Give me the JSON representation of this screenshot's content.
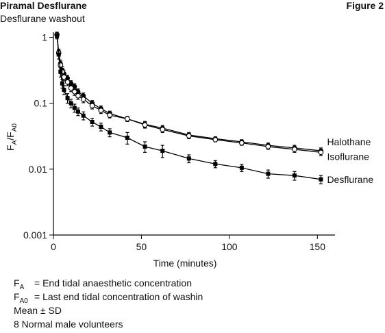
{
  "header": {
    "title": "Piramal Desflurane",
    "subtitle": "Desflurane washout",
    "figure": "Figure 2"
  },
  "chart_data": {
    "type": "line",
    "yscale": "log",
    "grid": false,
    "ylabel": [
      "F",
      "A",
      "/F",
      "A0"
    ],
    "xlabel": "Time (minutes)",
    "xlim": [
      0,
      160
    ],
    "xticks": [
      0,
      50,
      100,
      150
    ],
    "ylim": [
      0.001,
      1.2
    ],
    "yticks": [
      1,
      0.1,
      0.01,
      0.001
    ],
    "x": [
      2,
      3,
      4,
      5,
      6,
      8,
      10,
      12,
      14,
      17,
      22,
      27,
      32,
      42,
      52,
      62,
      77,
      92,
      107,
      122,
      137,
      152
    ],
    "series": [
      {
        "name": "Halothane",
        "color": "#000000",
        "marker": "circle",
        "values": [
          1.1,
          0.6,
          0.4,
          0.32,
          0.28,
          0.24,
          0.2,
          0.18,
          0.15,
          0.13,
          0.1,
          0.083,
          0.07,
          0.058,
          0.048,
          0.042,
          0.033,
          0.029,
          0.026,
          0.023,
          0.021,
          0.019
        ],
        "errors": [
          0.1,
          0.06,
          0.05,
          0.04,
          0.03,
          0.025,
          0.02,
          0.018,
          0.015,
          0.013,
          0.01,
          0.008,
          0.006,
          0.005,
          0.005,
          0.004,
          0.003,
          0.002,
          0.002,
          0.002,
          0.002,
          0.002
        ]
      },
      {
        "name": "Isoflurane",
        "color": "#000000",
        "marker": "open-circle",
        "values": [
          1.1,
          0.58,
          0.38,
          0.3,
          0.25,
          0.21,
          0.17,
          0.15,
          0.13,
          0.115,
          0.092,
          0.078,
          0.066,
          0.058,
          0.047,
          0.04,
          0.032,
          0.028,
          0.025,
          0.022,
          0.02,
          0.018
        ],
        "errors": [
          0.1,
          0.06,
          0.05,
          0.04,
          0.03,
          0.025,
          0.02,
          0.018,
          0.015,
          0.013,
          0.01,
          0.008,
          0.006,
          0.005,
          0.005,
          0.004,
          0.003,
          0.002,
          0.002,
          0.002,
          0.002,
          0.002
        ]
      },
      {
        "name": "Desflurane",
        "color": "#000000",
        "marker": "square",
        "values": [
          1.05,
          0.55,
          0.3,
          0.2,
          0.16,
          0.12,
          0.1,
          0.085,
          0.075,
          0.065,
          0.052,
          0.044,
          0.036,
          0.03,
          0.022,
          0.019,
          0.0145,
          0.012,
          0.0105,
          0.0085,
          0.008,
          0.007
        ],
        "errors": [
          0.1,
          0.08,
          0.05,
          0.03,
          0.025,
          0.02,
          0.015,
          0.012,
          0.01,
          0.009,
          0.007,
          0.006,
          0.005,
          0.006,
          0.004,
          0.004,
          0.002,
          0.0015,
          0.0013,
          0.0012,
          0.0012,
          0.001
        ]
      }
    ],
    "notes": [
      {
        "symbol": "F",
        "sub": "A",
        "text": "= End tidal anaesthetic concentration"
      },
      {
        "symbol": "F",
        "sub": "A0",
        "text": "= Last end tidal concentration of washin"
      },
      {
        "text": "Mean ± SD"
      },
      {
        "text": "8 Normal male volunteers"
      }
    ]
  }
}
